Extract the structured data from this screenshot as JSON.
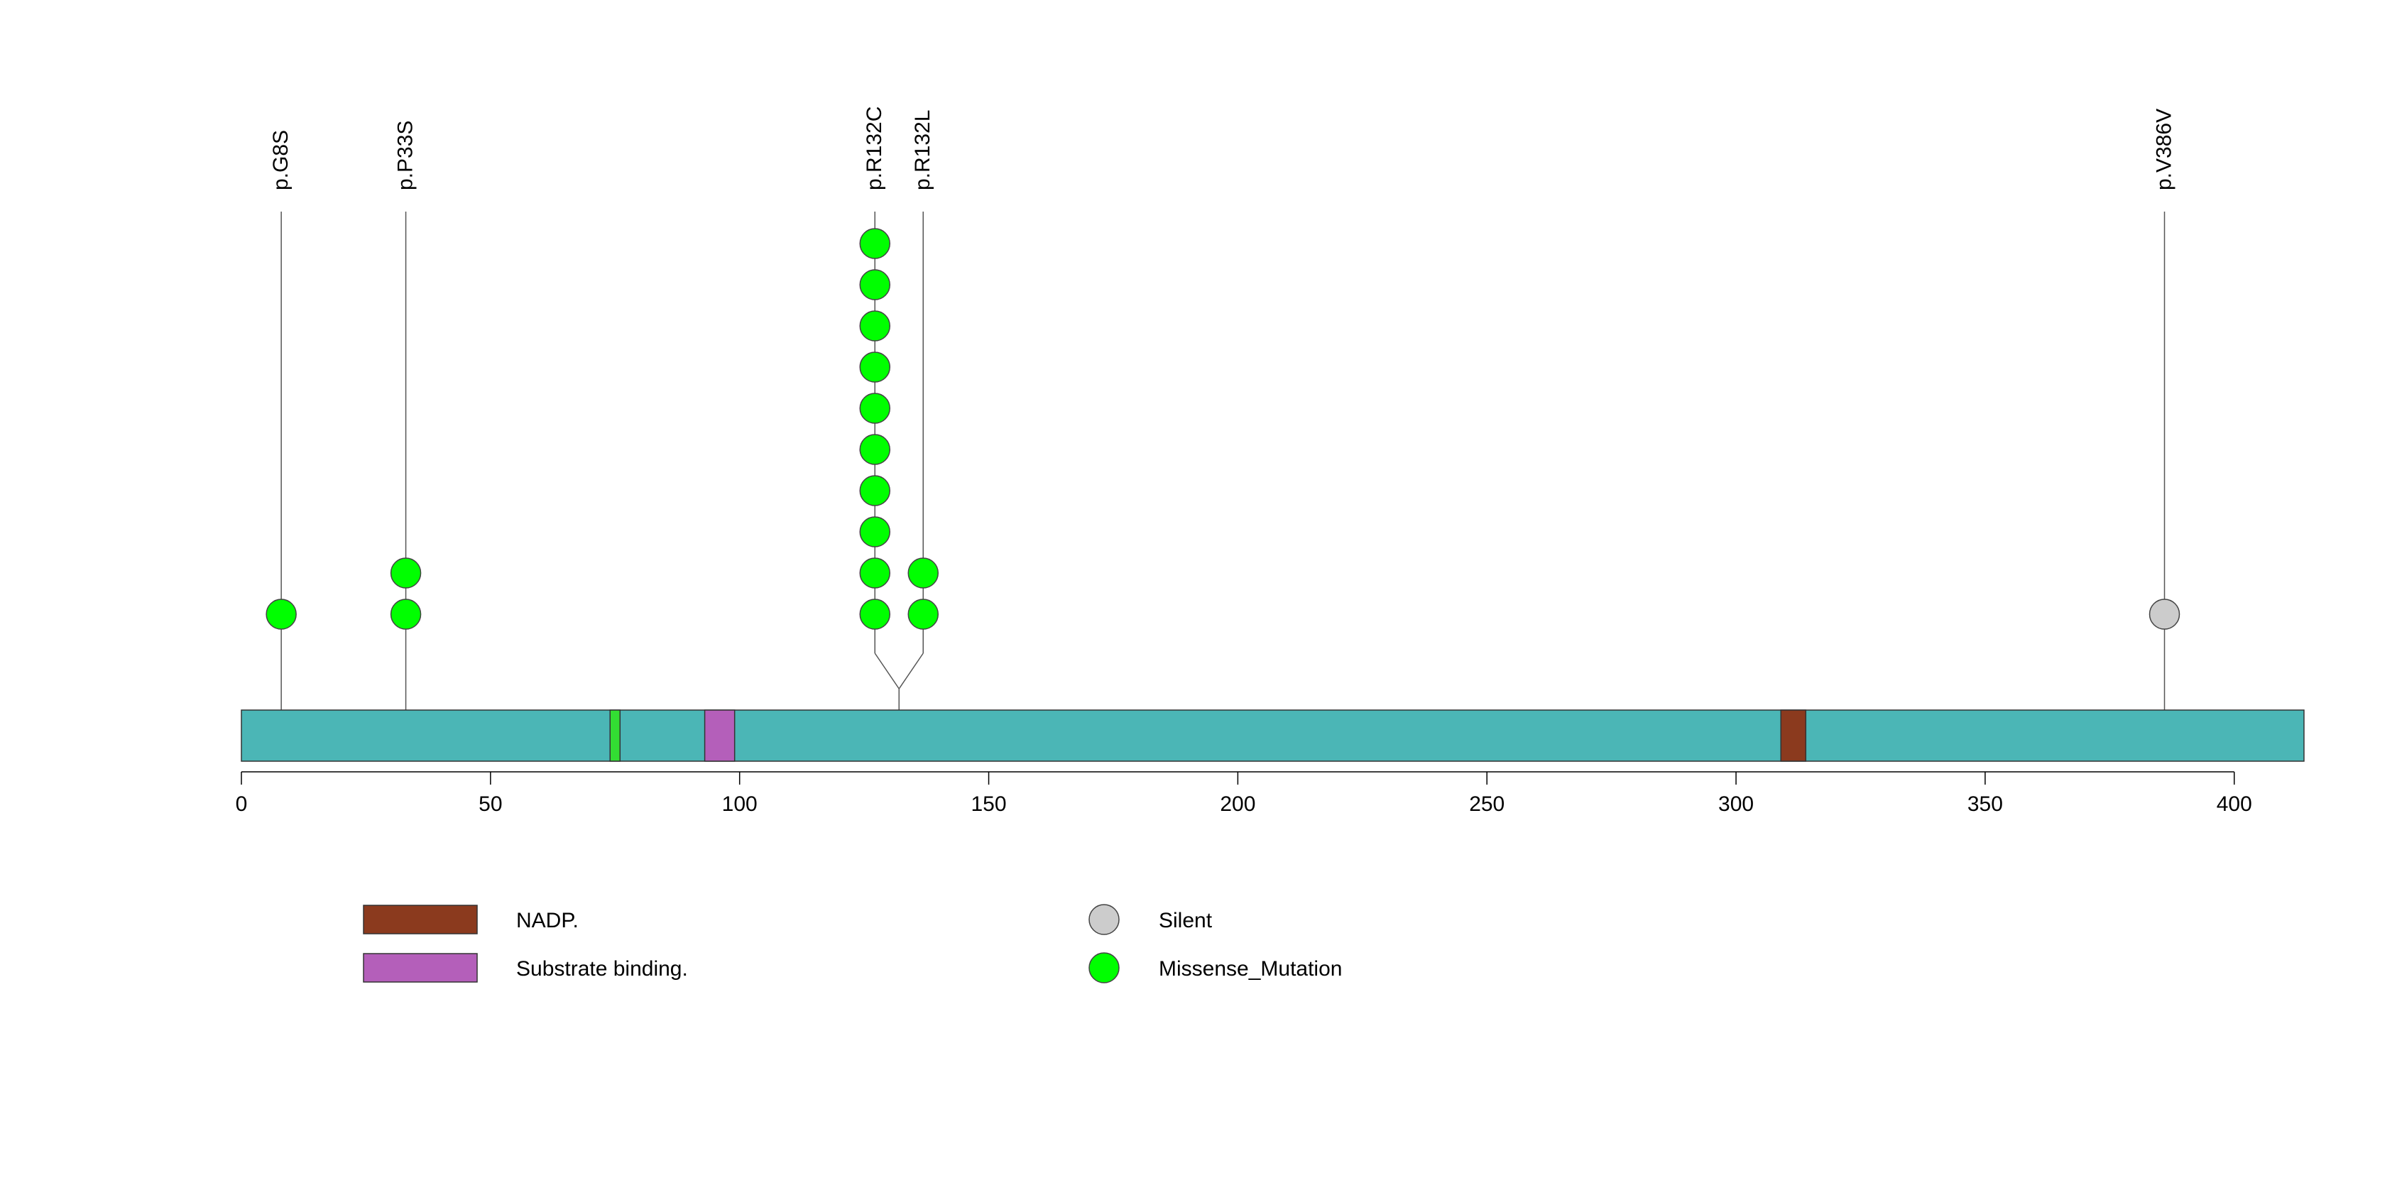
{
  "chart_data": {
    "type": "lollipop",
    "protein_length": 414,
    "xlim": [
      0,
      414
    ],
    "x_ticks": [
      0,
      50,
      100,
      150,
      200,
      250,
      300,
      350,
      400
    ],
    "x_tick_labels": [
      "0",
      "50",
      "100",
      "150",
      "200",
      "250",
      "300",
      "350",
      "400"
    ],
    "mutations": [
      {
        "label": "p.G8S",
        "position": 8,
        "count": 1,
        "type": "Missense_Mutation"
      },
      {
        "label": "p.P33S",
        "position": 33,
        "count": 2,
        "type": "Missense_Mutation"
      },
      {
        "label": "p.R132C",
        "position": 132,
        "count": 10,
        "type": "Missense_Mutation"
      },
      {
        "label": "p.R132L",
        "position": 132,
        "count": 2,
        "type": "Missense_Mutation"
      },
      {
        "label": "p.V386V",
        "position": 386,
        "count": 1,
        "type": "Silent"
      }
    ],
    "domains": [
      {
        "name": "",
        "start": 74,
        "end": 76,
        "color": "#33dd33"
      },
      {
        "name": "Substrate binding.",
        "start": 93,
        "end": 99,
        "color": "#b45fba"
      },
      {
        "name": "NADP.",
        "start": 309,
        "end": 314,
        "color": "#8b3a1e"
      }
    ],
    "protein_color": "#4bb6b6",
    "legend": {
      "domains": [
        {
          "label": "NADP.",
          "color": "#8b3a1e"
        },
        {
          "label": "Substrate binding.",
          "color": "#b45fba"
        }
      ],
      "mutation_types": [
        {
          "label": "Silent",
          "color": "#cccccc"
        },
        {
          "label": "Missense_Mutation",
          "color": "#00ff00"
        }
      ]
    }
  }
}
